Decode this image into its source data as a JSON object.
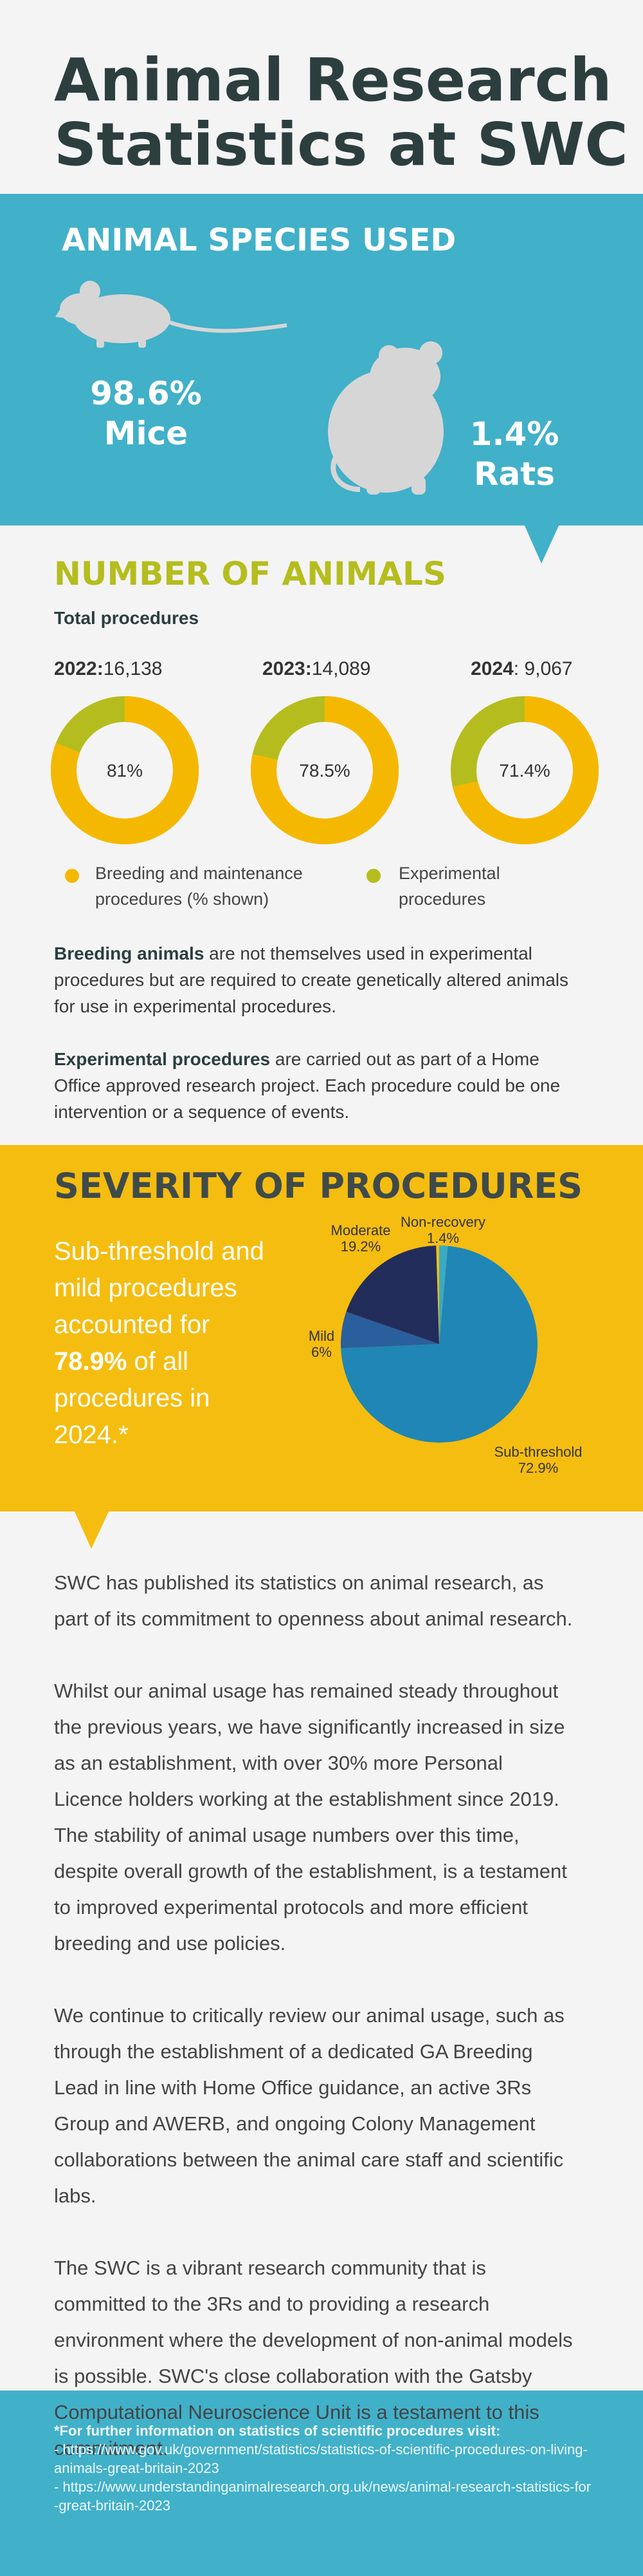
{
  "header": {
    "title_lines": [
      "Animal Research",
      "Statistics at SWC"
    ]
  },
  "species": {
    "heading": "ANIMAL SPECIES USED",
    "items": [
      {
        "percent": "98.6%",
        "label": "Mice"
      },
      {
        "percent": "1.4%",
        "label": "Rats"
      }
    ]
  },
  "procedures": {
    "heading": "NUMBER OF ANIMALS",
    "subheading": "Total procedures",
    "years": [
      {
        "year": "2022:",
        "total": "16,138",
        "breeding": 81,
        "breeding_label": "81%"
      },
      {
        "year": "2023:",
        "total": "14,089",
        "breeding": 78.5,
        "breeding_label": "78.5%"
      },
      {
        "year": "2024",
        "total": ": 9,067",
        "breeding": 71.4,
        "breeding_label": "71.4%"
      }
    ],
    "legend": [
      {
        "name": "Breeding and maintenance procedures (% shown)",
        "color": "#f5b800"
      },
      {
        "name": "Experimental procedures",
        "color": "#b5bd1e"
      }
    ],
    "notes": [
      {
        "bold": "Breeding animals",
        "text": " are not themselves used in experimental procedures but are required to create genetically altered animals for use in experimental procedures."
      },
      {
        "bold": "Experimental procedures",
        "text": " are carried out as part of a Home Office approved research project. Each procedure could be one intervention or a sequence of events."
      }
    ]
  },
  "severity": {
    "heading": "SEVERITY OF PROCEDURES",
    "summary": {
      "before": "Sub-threshold and mild procedures accounted for ",
      "highlight": "78.9%",
      "after": " of all procedures in 2024.*"
    },
    "slices": [
      {
        "name": "Non-recovery",
        "value": 1.4,
        "value_label": "1.4%",
        "color": "#3aaac5"
      },
      {
        "name": "Sub-threshold",
        "value": 72.9,
        "value_label": "72.9%",
        "color": "#1f86b5"
      },
      {
        "name": "Mild",
        "value": 6,
        "value_label": "6%",
        "color": "#2a5f9e"
      },
      {
        "name": "Moderate",
        "value": 19.2,
        "value_label": "19.2%",
        "color": "#232d5c"
      }
    ]
  },
  "body": [
    "SWC has published its statistics on animal research, as part of its commitment to openness about animal research.",
    "Whilst our animal usage has remained steady throughout the  previous years, we have significantly increased in size as an establishment, with over 30% more Personal Licence holders working at the establishment since 2019. The stability of animal usage numbers over this time, despite overall growth of the establishment, is a testament to improved experimental protocols and more efficient breeding and use policies.",
    "We continue to critically review our animal usage, such as through the establishment of a dedicated GA Breeding Lead in line with Home Office guidance, an active 3Rs Group and AWERB, and ongoing Colony Management collaborations between the animal care staff and scientific labs.",
    "The SWC is a vibrant research community that is committed to the 3Rs and to providing a research environment where the development of non-animal models is possible. SWC's close collaboration with the Gatsby Computational Neuroscience Unit is a testament to this commitment."
  ],
  "footer": {
    "heading": "*For further information on statistics of scientific procedures visit:",
    "links": [
      "- https://www.gov.uk/government/statistics/statistics-of-scientific-procedures-on-living-animals-great-britain-2023",
      "- https://www.understandinganimalresearch.org.uk/news/animal-research-statistics-for-great-britain-2023"
    ]
  }
}
